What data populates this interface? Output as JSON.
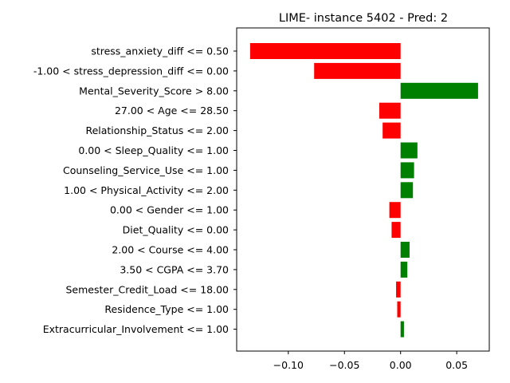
{
  "chart_data": {
    "type": "bar",
    "orientation": "horizontal",
    "title": "LIME- instance 5402 - Pred: 2",
    "xlabel": "",
    "ylabel": "",
    "xlim": [
      -0.146,
      0.079
    ],
    "xticks": [
      -0.1,
      -0.05,
      0.0,
      0.05
    ],
    "xtick_labels": [
      "−0.10",
      "−0.05",
      "0.00",
      "0.05"
    ],
    "grid": false,
    "legend": "none",
    "positive_color": "#008000",
    "negative_color": "#ff0000",
    "categories": [
      "stress_anxiety_diff <= 0.50",
      "-1.00 < stress_depression_diff <= 0.00",
      "Mental_Severity_Score > 8.00",
      "27.00 < Age <= 28.50",
      "Relationship_Status <= 2.00",
      "0.00 < Sleep_Quality <= 1.00",
      "Counseling_Service_Use <= 1.00",
      "1.00 < Physical_Activity <= 2.00",
      "0.00 < Gender <= 1.00",
      "Diet_Quality <= 0.00",
      "2.00 < Course <= 4.00",
      "3.50 < CGPA <= 3.70",
      "Semester_Credit_Load <= 18.00",
      "Residence_Type <= 1.00",
      "Extracurricular_Involvement <= 1.00"
    ],
    "values": [
      -0.134,
      -0.077,
      0.069,
      -0.019,
      -0.016,
      0.015,
      0.012,
      0.011,
      -0.01,
      -0.008,
      0.008,
      0.006,
      -0.004,
      -0.003,
      0.003
    ]
  }
}
